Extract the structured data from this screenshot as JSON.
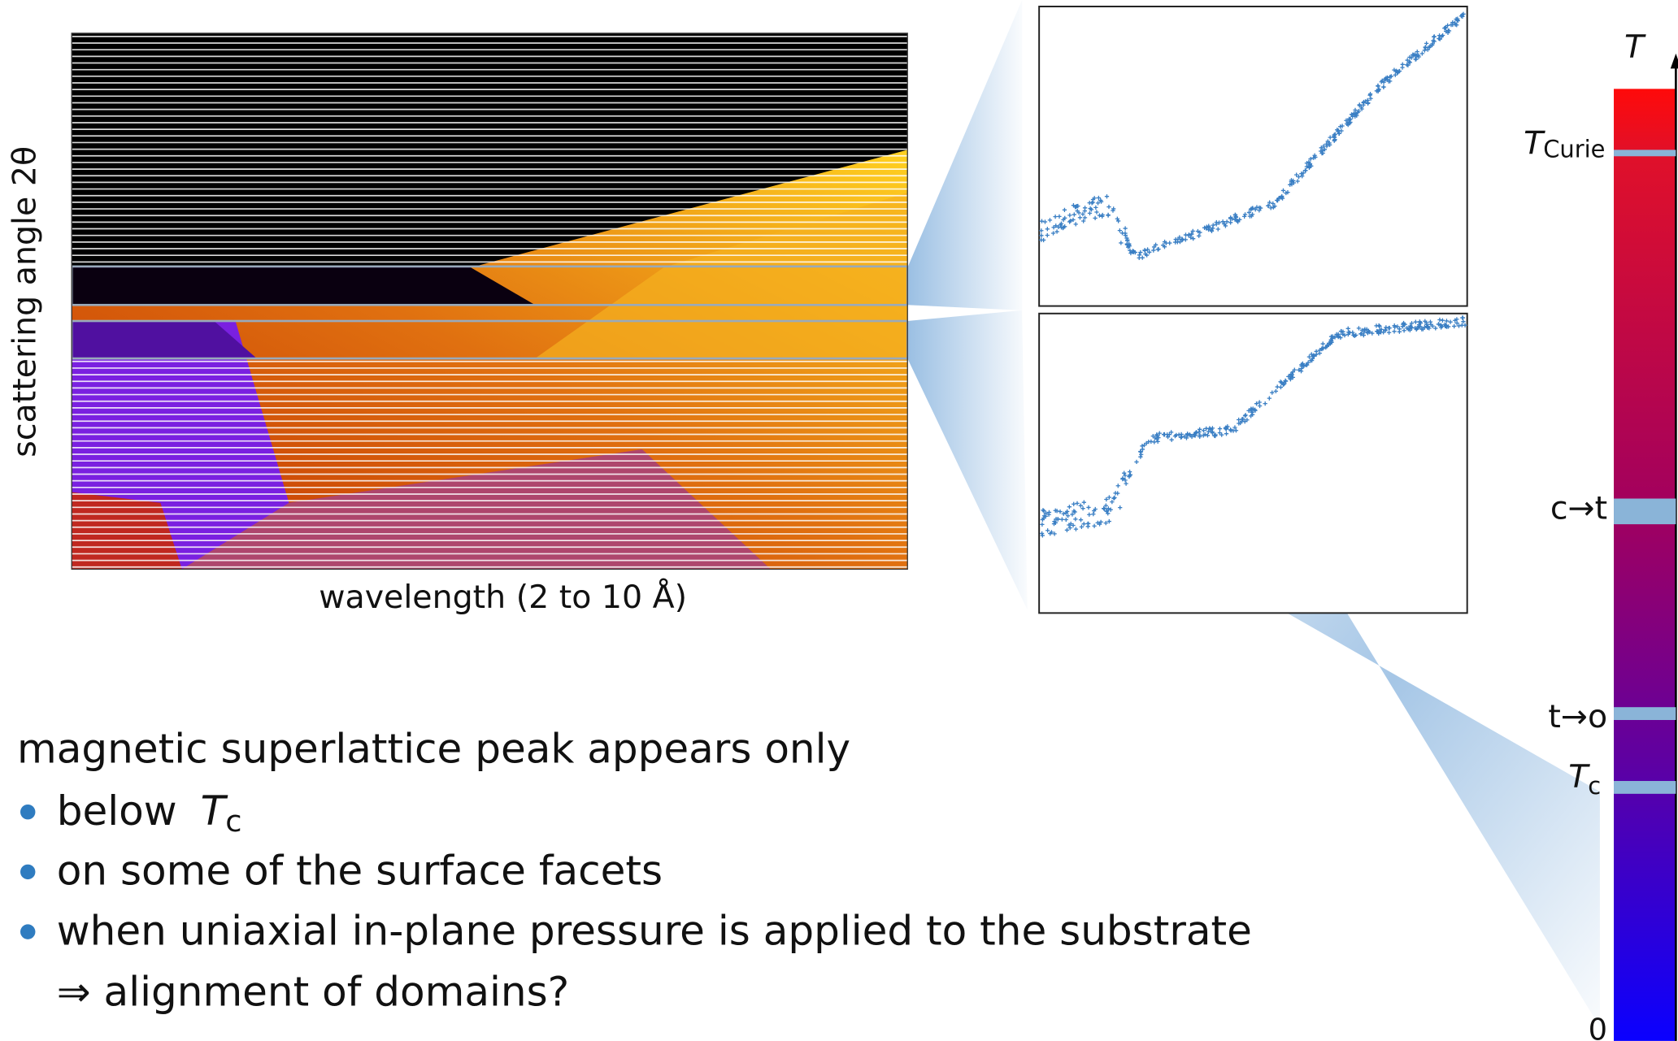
{
  "figure": {
    "y_axis_label": "scattering angle 2θ",
    "x_axis_label": "wavelength (2 to 10 Å)",
    "temperature_axis": {
      "symbol": "T",
      "levels": [
        {
          "symbol": "T",
          "subscript": "Curie"
        },
        {
          "label": "c→t"
        },
        {
          "label": "t→o"
        },
        {
          "symbol": "T",
          "subscript": "c"
        },
        {
          "label": "0"
        }
      ]
    }
  },
  "text": {
    "heading": "magnetic superlattice peak appears only",
    "bullets": [
      {
        "prefix": "below",
        "symbol": "T",
        "subscript": "c"
      },
      {
        "text": "on some of the surface facets"
      },
      {
        "text": "when uniaxial in-plane pressure is applied to the substrate"
      }
    ],
    "conclusion": "⇒ alignment of domains?"
  }
}
